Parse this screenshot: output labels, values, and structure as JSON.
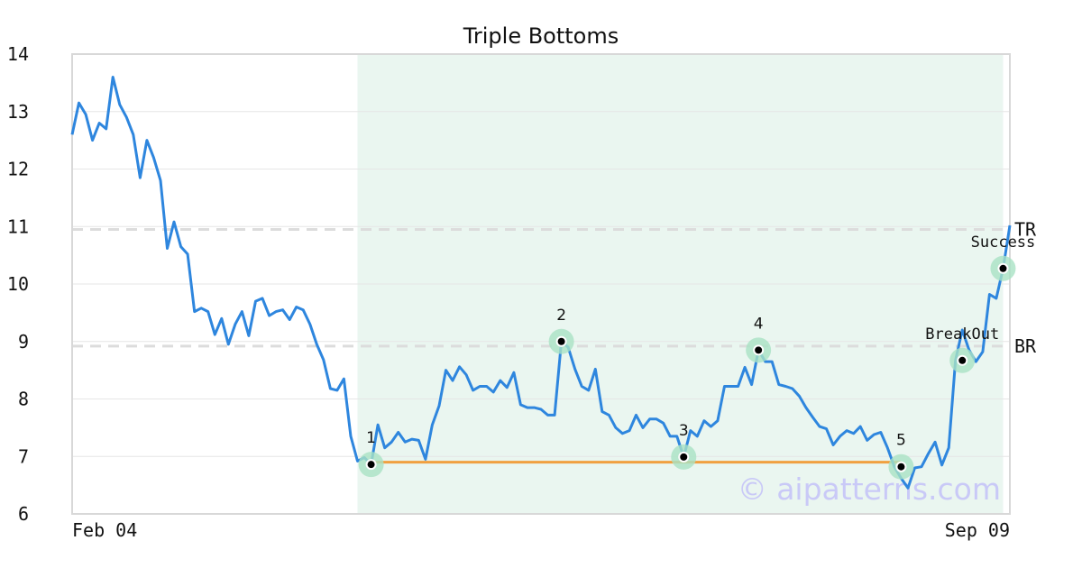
{
  "chart_data": {
    "type": "line",
    "title": "Triple Bottoms",
    "xlabel": "",
    "ylabel": "",
    "ylim": [
      6,
      14
    ],
    "yticks": [
      6,
      7,
      8,
      9,
      10,
      11,
      12,
      13,
      14
    ],
    "xtick_labels": [
      "Feb 04",
      "Sep 09"
    ],
    "grid": true,
    "x_count": 139,
    "series": [
      {
        "color": "#2e86de",
        "values": [
          12.6,
          13.15,
          12.95,
          12.5,
          12.8,
          12.7,
          13.6,
          13.12,
          12.9,
          12.6,
          11.85,
          12.5,
          12.2,
          11.8,
          10.62,
          11.08,
          10.65,
          10.52,
          9.52,
          9.58,
          9.52,
          9.12,
          9.4,
          8.95,
          9.3,
          9.52,
          9.1,
          9.7,
          9.75,
          9.45,
          9.52,
          9.55,
          9.38,
          9.6,
          9.55,
          9.3,
          8.95,
          8.68,
          8.18,
          8.15,
          8.35,
          7.35,
          6.92,
          6.98,
          6.86,
          7.55,
          7.15,
          7.25,
          7.42,
          7.25,
          7.3,
          7.28,
          6.95,
          7.55,
          7.88,
          8.5,
          8.32,
          8.56,
          8.42,
          8.15,
          8.22,
          8.22,
          8.12,
          8.32,
          8.2,
          8.46,
          7.9,
          7.85,
          7.85,
          7.82,
          7.72,
          7.72,
          9.0,
          8.9,
          8.52,
          8.22,
          8.15,
          8.52,
          7.78,
          7.72,
          7.5,
          7.4,
          7.45,
          7.72,
          7.5,
          7.65,
          7.65,
          7.58,
          7.35,
          7.35,
          6.99,
          7.45,
          7.35,
          7.62,
          7.52,
          7.62,
          8.22,
          8.22,
          8.22,
          8.55,
          8.25,
          8.85,
          8.65,
          8.65,
          8.25,
          8.22,
          8.18,
          8.05,
          7.85,
          7.68,
          7.52,
          7.48,
          7.2,
          7.35,
          7.45,
          7.4,
          7.52,
          7.28,
          7.38,
          7.42,
          7.15,
          6.82,
          6.62,
          6.45,
          6.8,
          6.82,
          7.05,
          7.25,
          6.85,
          7.15,
          8.67,
          9.2,
          8.85,
          8.65,
          8.82,
          9.82,
          9.75,
          10.27,
          11.02
        ]
      }
    ],
    "range_band": {
      "x_start": 42,
      "x_end": 137,
      "color": "#eaf6f0"
    },
    "support_line": {
      "x_start": 44,
      "x_end": 122,
      "y": 6.9,
      "color": "#f0a040"
    },
    "levels": [
      {
        "label": "TR",
        "y": 10.95
      },
      {
        "label": "BR",
        "y": 8.92
      }
    ],
    "points": [
      {
        "label": "1",
        "x": 44,
        "y": 6.86
      },
      {
        "label": "2",
        "x": 72,
        "y": 9.0
      },
      {
        "label": "3",
        "x": 90,
        "y": 6.99
      },
      {
        "label": "4",
        "x": 101,
        "y": 8.85
      },
      {
        "label": "5",
        "x": 122,
        "y": 6.82
      },
      {
        "label": "BreakOut",
        "x": 131,
        "y": 8.67
      },
      {
        "label": "Success",
        "x": 137,
        "y": 10.27
      }
    ],
    "watermark": "© aipatterns.com"
  }
}
